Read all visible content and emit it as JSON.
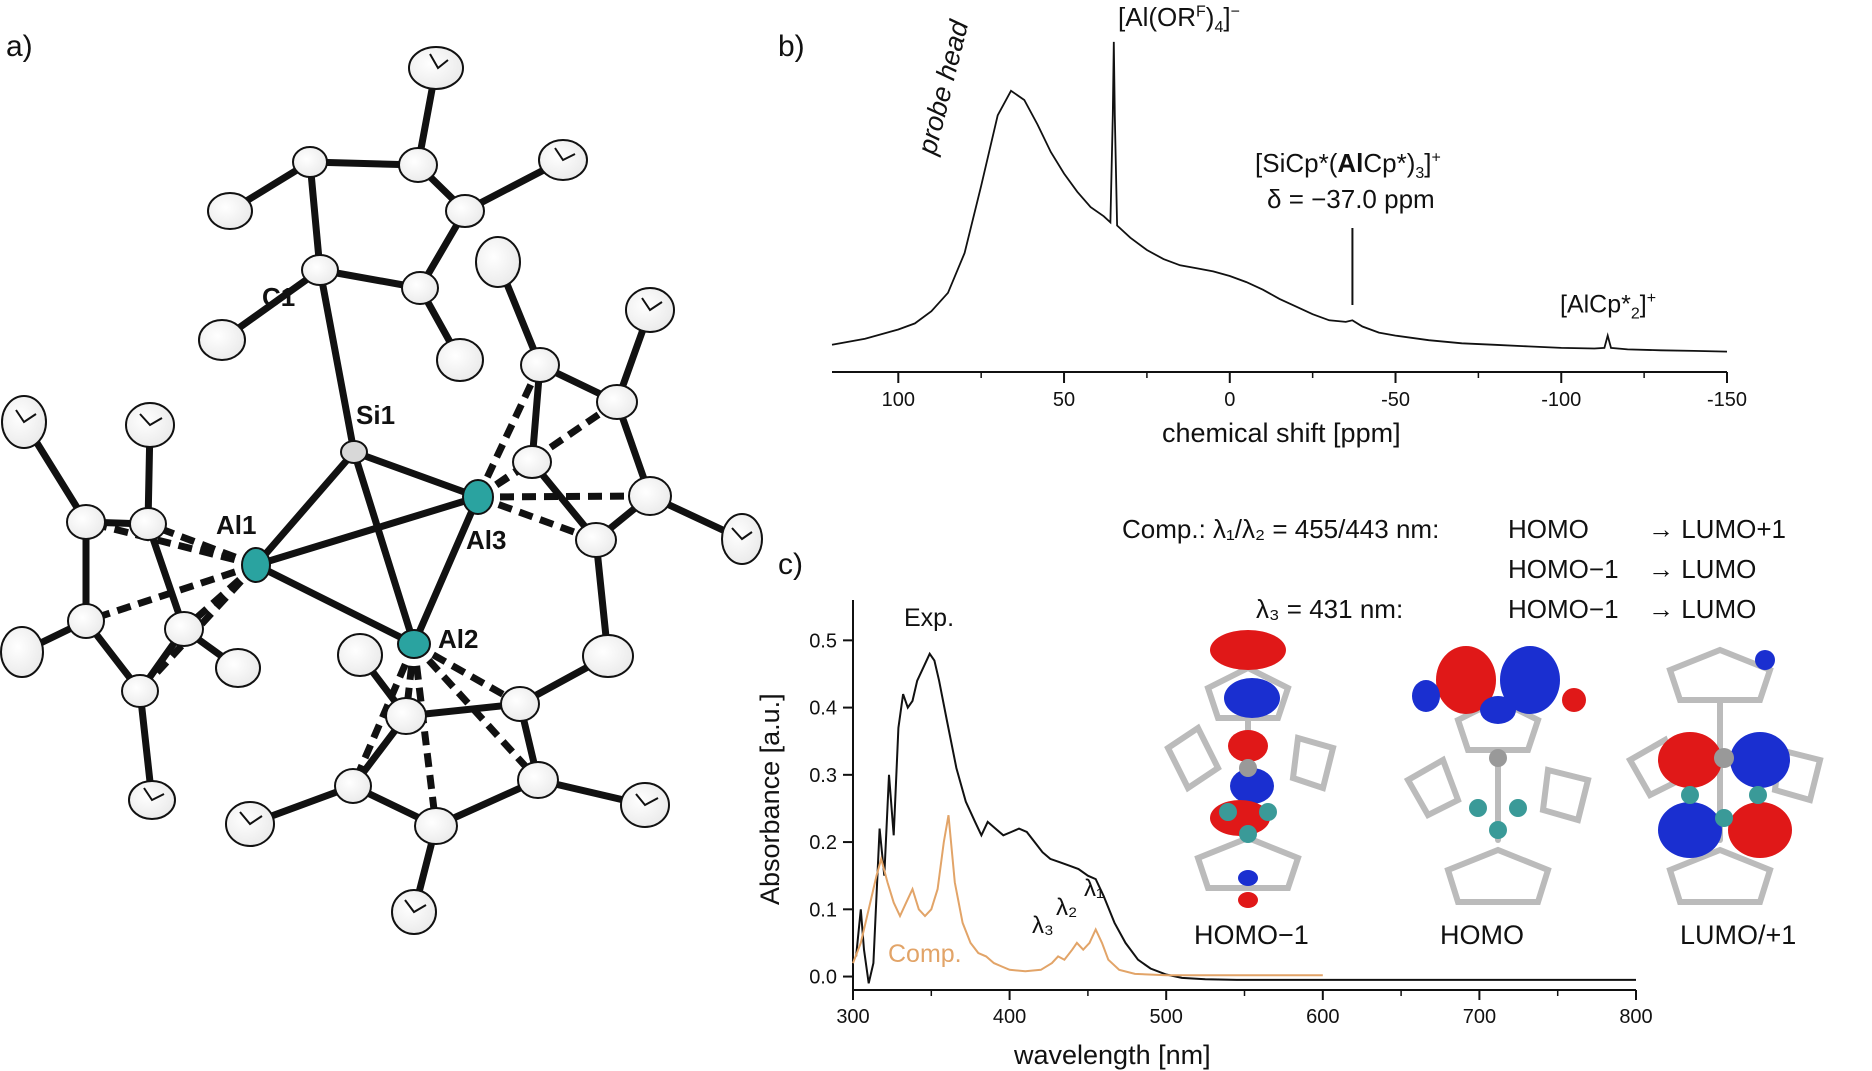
{
  "panels": {
    "a": "a)",
    "b": "b)",
    "c": "c)"
  },
  "structure": {
    "atoms": {
      "c1": "C1",
      "si1": "Si1",
      "al1": "Al1",
      "al2": "Al2",
      "al3": "Al3"
    },
    "colors": {
      "al": "#2aa3a0",
      "bond": "#111111"
    }
  },
  "nmr": {
    "xlabel": "chemical shift [ppm]",
    "probe_label": "probe head",
    "anion_label_main": "[Al(OR",
    "anion_label_sup": "F",
    "anion_label_tail": ")",
    "anion_label_sub": "4",
    "anion_label_end": "]",
    "anion_label_charge": "−",
    "cation_label_a": "[SiCp*(",
    "cation_label_bold": "Al",
    "cation_label_b": "Cp*)",
    "cation_label_sub": "3",
    "cation_label_c": "]",
    "cation_label_charge": "+",
    "shift_label": "δ = −37.0 ppm",
    "alcp_label_main": "[AlCp*",
    "alcp_label_sub": "2",
    "alcp_label_end": "]",
    "alcp_label_charge": "+"
  },
  "uvvis": {
    "comp_line1": "Comp.: λ₁/λ₂ = 455/443 nm:",
    "comp_line1_a": "HOMO",
    "comp_line1_b": "→ LUMO+1",
    "comp_line2_a": "HOMO−1",
    "comp_line2_b": "→ LUMO",
    "comp_line3": "λ₃ = 431 nm:",
    "comp_line3_a": "HOMO−1",
    "comp_line3_b": "→ LUMO",
    "exp_label": "Exp.",
    "comp_label": "Comp.",
    "lambda1": "λ₁",
    "lambda2": "λ₂",
    "lambda3": "λ₃",
    "mo_labels": [
      "HOMO−1",
      "HOMO",
      "LUMO/+1"
    ]
  },
  "chart_data": [
    {
      "type": "line",
      "xlabel": "chemical shift [ppm]",
      "ylabel": "",
      "xlim": [
        120,
        -150
      ],
      "x_ticks": [
        100,
        50,
        0,
        -50,
        -100,
        -150
      ],
      "x_tick_labels": [
        "100",
        "50",
        "0",
        "-50",
        "-100",
        "-150"
      ],
      "series": [
        {
          "color": "#111111",
          "x": [
            120,
            110,
            100,
            95,
            90,
            85,
            80,
            75,
            70,
            66,
            62,
            58,
            54,
            50,
            46,
            42,
            38,
            36,
            35.3,
            35,
            34.7,
            34,
            30,
            25,
            20,
            15,
            10,
            5,
            0,
            -5,
            -10,
            -15,
            -20,
            -25,
            -30,
            -35,
            -37,
            -40,
            -45,
            -50,
            -60,
            -70,
            -80,
            -90,
            -100,
            -110,
            -113,
            -114,
            -115,
            -120,
            -130,
            -140,
            -150
          ],
          "y": [
            0.03,
            0.05,
            0.08,
            0.1,
            0.14,
            0.2,
            0.33,
            0.55,
            0.78,
            0.86,
            0.83,
            0.75,
            0.66,
            0.59,
            0.53,
            0.48,
            0.45,
            0.43,
            0.78,
            1.02,
            0.78,
            0.42,
            0.38,
            0.34,
            0.31,
            0.29,
            0.28,
            0.27,
            0.255,
            0.235,
            0.21,
            0.18,
            0.155,
            0.13,
            0.11,
            0.105,
            0.11,
            0.09,
            0.07,
            0.06,
            0.045,
            0.035,
            0.03,
            0.025,
            0.02,
            0.018,
            0.02,
            0.06,
            0.02,
            0.015,
            0.012,
            0.01,
            0.008
          ]
        }
      ]
    },
    {
      "type": "line",
      "xlabel": "wavelength [nm]",
      "ylabel": "Absorbance [a.u.]",
      "xlim": [
        300,
        800
      ],
      "ylim": [
        -0.02,
        0.56
      ],
      "x_ticks": [
        300,
        400,
        500,
        600,
        700,
        800
      ],
      "y_ticks": [
        0.0,
        0.1,
        0.2,
        0.3,
        0.4,
        0.5
      ],
      "y_tick_labels": [
        "0.0",
        "0.1",
        "0.2",
        "0.3",
        "0.4",
        "0.5"
      ],
      "series": [
        {
          "name": "Exp.",
          "color": "#111111",
          "x": [
            302,
            305,
            307,
            310,
            313,
            317,
            320,
            323,
            326,
            329,
            332,
            335,
            338,
            341,
            345,
            349,
            352,
            355,
            360,
            366,
            372,
            378,
            382,
            386,
            391,
            396,
            401,
            406,
            411,
            416,
            421,
            426,
            432,
            438,
            444,
            450,
            455,
            460,
            467,
            474,
            482,
            490,
            500,
            510,
            525,
            545,
            570,
            600,
            650,
            700,
            750,
            800
          ],
          "y": [
            0.03,
            0.1,
            0.04,
            -0.01,
            0.02,
            0.22,
            0.15,
            0.3,
            0.21,
            0.37,
            0.42,
            0.4,
            0.41,
            0.44,
            0.46,
            0.48,
            0.47,
            0.44,
            0.38,
            0.31,
            0.26,
            0.23,
            0.21,
            0.23,
            0.22,
            0.21,
            0.215,
            0.22,
            0.215,
            0.2,
            0.185,
            0.175,
            0.17,
            0.165,
            0.16,
            0.15,
            0.145,
            0.12,
            0.08,
            0.05,
            0.025,
            0.012,
            0.003,
            -0.002,
            -0.004,
            -0.005,
            -0.005,
            -0.005,
            -0.005,
            -0.005,
            -0.005,
            -0.005
          ]
        },
        {
          "name": "Comp.",
          "color": "#e2a468",
          "x": [
            300,
            305,
            310,
            315,
            318,
            322,
            326,
            330,
            334,
            338,
            342,
            346,
            350,
            354,
            358,
            361,
            365,
            370,
            375,
            380,
            385,
            390,
            395,
            400,
            410,
            420,
            427,
            431,
            435,
            440,
            443,
            447,
            451,
            455,
            459,
            463,
            470,
            480,
            500,
            530,
            560,
            600
          ],
          "y": [
            0.02,
            0.05,
            0.1,
            0.15,
            0.175,
            0.14,
            0.11,
            0.09,
            0.11,
            0.13,
            0.1,
            0.09,
            0.1,
            0.13,
            0.2,
            0.24,
            0.14,
            0.08,
            0.05,
            0.035,
            0.03,
            0.02,
            0.015,
            0.01,
            0.008,
            0.01,
            0.02,
            0.03,
            0.025,
            0.04,
            0.05,
            0.04,
            0.05,
            0.07,
            0.05,
            0.025,
            0.01,
            0.004,
            0.002,
            0.002,
            0.002,
            0.002
          ]
        }
      ]
    }
  ]
}
